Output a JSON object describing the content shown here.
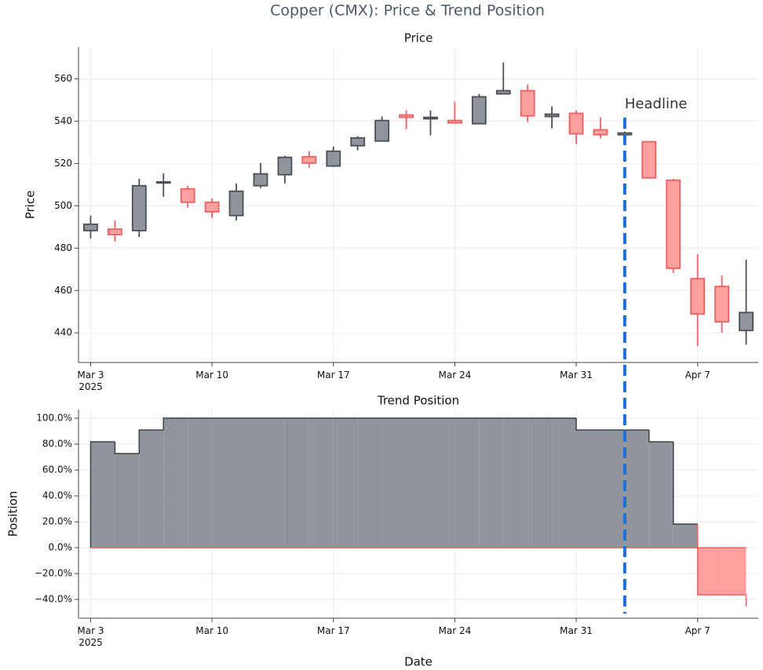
{
  "title": "Copper (CMX): Price & Trend Position",
  "annotation": {
    "x": "2025-04-02",
    "text": "Headline"
  },
  "chart_data": [
    {
      "type": "candlestick",
      "title": "Price",
      "ylabel": "Price",
      "x": [
        "2025-03-03",
        "2025-03-04",
        "2025-03-05",
        "2025-03-06",
        "2025-03-07",
        "2025-03-10",
        "2025-03-11",
        "2025-03-12",
        "2025-03-13",
        "2025-03-14",
        "2025-03-17",
        "2025-03-18",
        "2025-03-19",
        "2025-03-20",
        "2025-03-21",
        "2025-03-24",
        "2025-03-25",
        "2025-03-26",
        "2025-03-27",
        "2025-03-28",
        "2025-03-31",
        "2025-04-01",
        "2025-04-02",
        "2025-04-03",
        "2025-04-04",
        "2025-04-07",
        "2025-04-08",
        "2025-04-09"
      ],
      "open": [
        488.3,
        489,
        488.3,
        510.8,
        508,
        501.7,
        495.4,
        509.5,
        514.7,
        523.2,
        518.8,
        528.4,
        530.6,
        542.9,
        541.1,
        540.3,
        538.8,
        552.9,
        554.4,
        542.2,
        543.7,
        535.9,
        533.6,
        530.3,
        512.1,
        465.6,
        461.9,
        441.1
      ],
      "high": [
        495.4,
        493.1,
        512.8,
        515.4,
        509.5,
        503.5,
        510.6,
        520.2,
        523.6,
        525.8,
        528.1,
        532.9,
        542.2,
        545.1,
        545.1,
        549.2,
        552.9,
        567.8,
        557.4,
        547,
        545.1,
        541.8,
        535.1,
        530.3,
        512.8,
        477.2,
        467.1,
        474.6
      ],
      "low": [
        484.6,
        483,
        485.3,
        504.3,
        499.1,
        494.3,
        493.1,
        508.4,
        510.6,
        518,
        518.4,
        526.2,
        530.3,
        536.2,
        533.3,
        538.8,
        538.5,
        552.9,
        539.6,
        536.6,
        529.2,
        531.8,
        533.3,
        512.8,
        468.2,
        433.7,
        440,
        434.4
      ],
      "close": [
        491.3,
        486.4,
        509.5,
        511.3,
        501.7,
        497.2,
        506.9,
        515.1,
        522.9,
        520.2,
        525.8,
        532.1,
        540.3,
        541.8,
        541.8,
        539.2,
        551.5,
        554.4,
        542.5,
        543.3,
        534,
        533.6,
        534.4,
        513.2,
        470.5,
        448.9,
        445.2,
        449.6
      ],
      "increasing_color": "#4a5058",
      "increasing_fill": "#8f959b",
      "decreasing_color": "#f06060",
      "decreasing_fill": "#ffa0a0",
      "xticks": [
        {
          "value": "2025-03-03",
          "label": "Mar 3\n2025"
        },
        {
          "value": "2025-03-10",
          "label": "Mar 10"
        },
        {
          "value": "2025-03-17",
          "label": "Mar 17"
        },
        {
          "value": "2025-03-24",
          "label": "Mar 24"
        },
        {
          "value": "2025-03-31",
          "label": "Mar 31"
        },
        {
          "value": "2025-04-07",
          "label": "Apr 7"
        }
      ],
      "ylim": [
        426,
        575
      ],
      "yticks": [
        440,
        460,
        480,
        500,
        520,
        540,
        560
      ],
      "grid": true
    },
    {
      "type": "step_area",
      "title": "Trend Position",
      "ylabel": "Position",
      "xlabel": "Date",
      "x": [
        "2025-03-03",
        "2025-03-04",
        "2025-03-05",
        "2025-03-06",
        "2025-03-07",
        "2025-03-10",
        "2025-03-11",
        "2025-03-12",
        "2025-03-13",
        "2025-03-14",
        "2025-03-17",
        "2025-03-18",
        "2025-03-19",
        "2025-03-20",
        "2025-03-21",
        "2025-03-24",
        "2025-03-25",
        "2025-03-26",
        "2025-03-27",
        "2025-03-28",
        "2025-03-31",
        "2025-04-01",
        "2025-04-02",
        "2025-04-03",
        "2025-04-04",
        "2025-04-07",
        "2025-04-08",
        "2025-04-09"
      ],
      "values": [
        81.8,
        72.7,
        90.9,
        100,
        100,
        100,
        100,
        100,
        100,
        100,
        100,
        100,
        100,
        100,
        100,
        100,
        100,
        100,
        100,
        100,
        90.9,
        90.9,
        90.9,
        81.8,
        18.2,
        -36.4,
        -36.4,
        -45.5
      ],
      "positive_color": "#3a4048",
      "positive_fill": "#8f959b",
      "negative_color": "#f06060",
      "negative_fill": "#ffa0a0",
      "xticks": [
        {
          "value": "2025-03-03",
          "label": "Mar 3\n2025"
        },
        {
          "value": "2025-03-10",
          "label": "Mar 10"
        },
        {
          "value": "2025-03-17",
          "label": "Mar 17"
        },
        {
          "value": "2025-03-24",
          "label": "Mar 24"
        },
        {
          "value": "2025-03-31",
          "label": "Mar 31"
        },
        {
          "value": "2025-04-07",
          "label": "Apr 7"
        }
      ],
      "ylim": [
        -54.5,
        106.7
      ],
      "yticks": [
        {
          "value": -40,
          "label": "−40.0%"
        },
        {
          "value": -20,
          "label": "−20.0%"
        },
        {
          "value": 0,
          "label": "0.0%"
        },
        {
          "value": 20,
          "label": "20.0%"
        },
        {
          "value": 40,
          "label": "40.0%"
        },
        {
          "value": 60,
          "label": "60.0%"
        },
        {
          "value": 80,
          "label": "80.0%"
        },
        {
          "value": 100,
          "label": "100.0%"
        }
      ],
      "grid": true
    }
  ]
}
